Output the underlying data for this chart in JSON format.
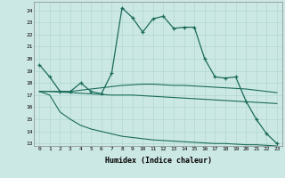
{
  "xlabel": "Humidex (Indice chaleur)",
  "bg_color": "#cce8e4",
  "line_color": "#1a6b5a",
  "grid_color": "#b0d8d0",
  "xlim": [
    -0.5,
    23.5
  ],
  "ylim": [
    12.8,
    24.7
  ],
  "yticks": [
    13,
    14,
    15,
    16,
    17,
    18,
    19,
    20,
    21,
    22,
    23,
    24
  ],
  "xticks": [
    0,
    1,
    2,
    3,
    4,
    5,
    6,
    7,
    8,
    9,
    10,
    11,
    12,
    13,
    14,
    15,
    16,
    17,
    18,
    19,
    20,
    21,
    22,
    23
  ],
  "series0": [
    19.5,
    18.5,
    17.3,
    17.3,
    18.0,
    17.3,
    17.1,
    18.8,
    24.2,
    23.4,
    22.2,
    23.3,
    23.5,
    22.5,
    22.6,
    22.6,
    20.0,
    18.5,
    18.4,
    18.5,
    16.5,
    15.0,
    13.8,
    13.0
  ],
  "series1": [
    17.3,
    17.3,
    17.3,
    17.3,
    17.4,
    17.5,
    17.6,
    17.7,
    17.8,
    17.85,
    17.9,
    17.9,
    17.85,
    17.8,
    17.8,
    17.75,
    17.7,
    17.65,
    17.6,
    17.55,
    17.5,
    17.4,
    17.3,
    17.2
  ],
  "series2": [
    17.3,
    17.3,
    17.25,
    17.2,
    17.15,
    17.1,
    17.05,
    17.0,
    17.0,
    17.0,
    16.95,
    16.9,
    16.85,
    16.8,
    16.75,
    16.7,
    16.65,
    16.6,
    16.55,
    16.5,
    16.45,
    16.4,
    16.35,
    16.3
  ],
  "series3": [
    17.3,
    17.0,
    15.6,
    15.0,
    14.5,
    14.2,
    14.0,
    13.8,
    13.6,
    13.5,
    13.4,
    13.3,
    13.25,
    13.2,
    13.15,
    13.1,
    13.05,
    13.0,
    13.0,
    12.95,
    12.9,
    12.9,
    12.85,
    12.8
  ]
}
